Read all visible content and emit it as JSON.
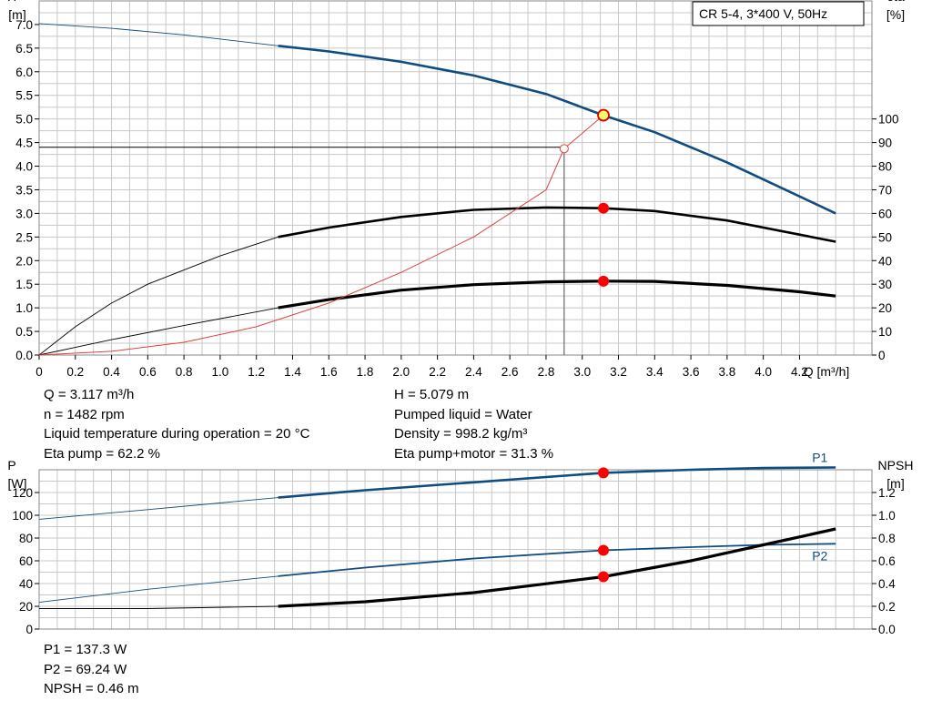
{
  "chart_data": [
    {
      "type": "line",
      "title": "CR 5-4, 3*400 V, 50Hz",
      "xlabel": "Q [m³/h]",
      "ylabel_left": [
        "H",
        "[m]"
      ],
      "ylabel_right": [
        "eta",
        "[%]"
      ],
      "xlim": [
        0,
        4.6
      ],
      "ylim_left": [
        0,
        7.5
      ],
      "ylim_right": [
        0,
        150
      ],
      "x_ticks": [
        "0",
        "0.2",
        "0.4",
        "0.6",
        "0.8",
        "1.0",
        "1.2",
        "1.4",
        "1.6",
        "1.8",
        "2.0",
        "2.2",
        "2.4",
        "2.6",
        "2.8",
        "3.0",
        "3.2",
        "3.4",
        "3.6",
        "3.8",
        "4.0",
        "4.2"
      ],
      "y_ticks_left": [
        "0.0",
        "0.5",
        "1.0",
        "1.5",
        "2.0",
        "2.5",
        "3.0",
        "3.5",
        "4.0",
        "4.5",
        "5.0",
        "5.5",
        "6.0",
        "6.5",
        "7.0"
      ],
      "y_ticks_right": [
        "0",
        "10",
        "20",
        "30",
        "40",
        "50",
        "60",
        "70",
        "80",
        "90",
        "100"
      ],
      "grid": true,
      "series": [
        {
          "key": "head",
          "axis": "left",
          "color": "#0f4c81",
          "x": [
            0,
            0.4,
            0.8,
            1.32,
            1.6,
            2.0,
            2.4,
            2.8,
            3.117,
            3.4,
            3.8,
            4.2,
            4.4
          ],
          "y": [
            7.02,
            6.92,
            6.78,
            6.55,
            6.43,
            6.21,
            5.92,
            5.53,
            5.079,
            4.72,
            4.08,
            3.36,
            3.0
          ]
        },
        {
          "key": "eta_pump",
          "axis": "right",
          "color": "#000000",
          "x": [
            0,
            0.2,
            0.4,
            0.6,
            0.8,
            1.0,
            1.32,
            1.6,
            2.0,
            2.4,
            2.8,
            3.117,
            3.4,
            3.8,
            4.2,
            4.4
          ],
          "y": [
            0,
            12,
            22,
            30,
            36,
            42,
            50,
            54,
            58.5,
            61.5,
            62.5,
            62.2,
            61,
            57,
            51,
            48
          ]
        },
        {
          "key": "eta_pump_motor",
          "axis": "right",
          "color": "#000000",
          "x": [
            0,
            0.4,
            0.8,
            1.32,
            1.6,
            2.0,
            2.4,
            2.8,
            3.117,
            3.4,
            3.8,
            4.2,
            4.4
          ],
          "y": [
            0,
            6.5,
            12.5,
            20,
            23.5,
            27.5,
            29.8,
            31.0,
            31.3,
            31.2,
            29.5,
            26.8,
            25
          ]
        },
        {
          "key": "system_curve",
          "axis": "left",
          "color": "#e04040",
          "x": [
            0,
            0.4,
            0.8,
            1.2,
            1.6,
            2.0,
            2.4,
            2.8,
            2.9,
            3.117
          ],
          "y": [
            0,
            0.08,
            0.27,
            0.6,
            1.1,
            1.75,
            2.5,
            3.5,
            4.37,
            5.079
          ]
        }
      ],
      "markers": [
        {
          "x": 3.117,
          "y": 5.079,
          "axis": "left",
          "kind": "duty-point"
        },
        {
          "x": 3.117,
          "y": 62.2,
          "axis": "right",
          "kind": "point"
        },
        {
          "x": 3.117,
          "y": 31.3,
          "axis": "right",
          "kind": "point"
        },
        {
          "x": 2.9,
          "y": 4.37,
          "axis": "left",
          "kind": "open-circle"
        }
      ],
      "guide_lines": {
        "x": 2.9,
        "y": 4.4
      }
    },
    {
      "type": "line",
      "xlim": [
        0,
        4.6
      ],
      "ylabel_left": [
        "P",
        "[W]"
      ],
      "ylabel_right": [
        "NPSH",
        "[m]"
      ],
      "ylim_left": [
        0,
        140
      ],
      "ylim_right": [
        0,
        1.4
      ],
      "y_ticks_left": [
        "0",
        "20",
        "40",
        "60",
        "80",
        "100",
        "120"
      ],
      "y_ticks_right": [
        "0.0",
        "0.2",
        "0.4",
        "0.6",
        "0.8",
        "1.0",
        "1.2"
      ],
      "grid": true,
      "series": [
        {
          "key": "P1",
          "name": "P1",
          "axis": "left",
          "color": "#0f4c81",
          "x": [
            0,
            0.6,
            1.32,
            1.8,
            2.4,
            3.117,
            3.6,
            4.0,
            4.4
          ],
          "y": [
            96.5,
            105,
            115.5,
            122,
            129,
            137.3,
            140,
            141.5,
            142
          ]
        },
        {
          "key": "P2",
          "name": "P2",
          "axis": "left",
          "color": "#0f4c81",
          "x": [
            0,
            0.6,
            1.32,
            1.8,
            2.4,
            3.117,
            3.6,
            4.0,
            4.4
          ],
          "y": [
            23.5,
            35,
            46.5,
            54,
            62,
            69.24,
            72,
            74,
            75
          ]
        },
        {
          "key": "NPSH",
          "axis": "right",
          "color": "#000000",
          "x": [
            0,
            0.6,
            1.32,
            1.8,
            2.4,
            3.117,
            3.6,
            4.0,
            4.4
          ],
          "y": [
            0.18,
            0.18,
            0.2,
            0.24,
            0.32,
            0.46,
            0.6,
            0.74,
            0.88
          ]
        }
      ],
      "markers": [
        {
          "x": 3.117,
          "y": 137.3,
          "axis": "left",
          "kind": "point"
        },
        {
          "x": 3.117,
          "y": 69.24,
          "axis": "left",
          "kind": "point"
        },
        {
          "x": 3.117,
          "y": 0.46,
          "axis": "right",
          "kind": "point"
        }
      ]
    }
  ],
  "readout_top": {
    "q": "Q = 3.117 m³/h",
    "n": "n = 1482 rpm",
    "temp": "Liquid temperature during operation = 20 °C",
    "eta_pump": "Eta pump = 62.2 %",
    "h": "H = 5.079 m",
    "liquid": "Pumped liquid = Water",
    "density": "Density = 998.2 kg/m³",
    "eta_total": "Eta pump+motor = 31.3 %"
  },
  "readout_bottom": {
    "p1": "P1 = 137.3 W",
    "p2": "P2 = 69.24 W",
    "npsh": "NPSH = 0.46 m"
  }
}
